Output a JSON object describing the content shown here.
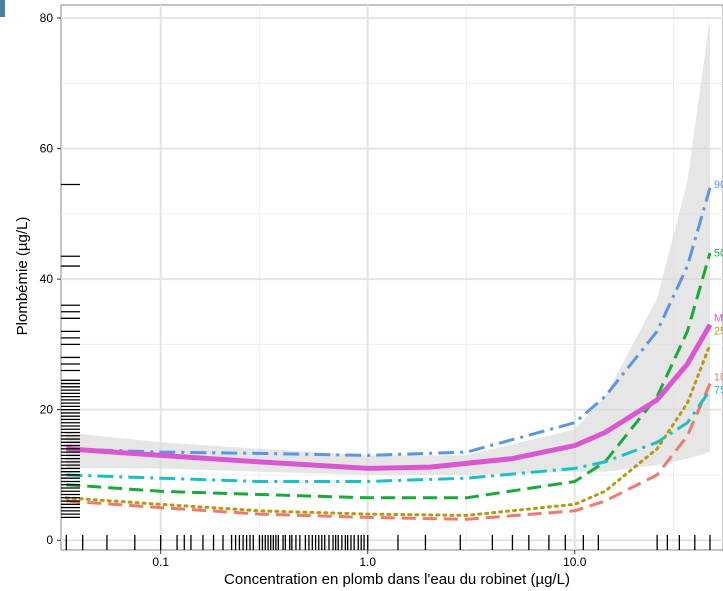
{
  "chart_data": {
    "type": "line",
    "xlabel": "Concentration en plomb dans l'eau du robinet (µg/L)",
    "ylabel": "Plombémie (µg/L)",
    "x_scale": "log10",
    "xlim": [
      0.033,
      52
    ],
    "ylim": [
      -1.5,
      82
    ],
    "x_ticks": [
      0.1,
      1.0,
      10.0
    ],
    "x_tick_labels": [
      "0.1",
      "1.0",
      "10.0"
    ],
    "y_ticks": [
      0,
      20,
      40,
      60,
      80
    ],
    "y_tick_labels": [
      "0",
      "20",
      "40",
      "60",
      "80"
    ],
    "grid": true,
    "confidence_band": {
      "color": "#d9d9d9",
      "x": [
        0.035,
        0.1,
        0.3,
        1.0,
        3.0,
        10.0,
        14.0,
        25.0,
        35.0,
        45.0
      ],
      "lower": [
        11.0,
        11.0,
        10.5,
        10.0,
        10.0,
        10.5,
        10.5,
        11.5,
        12.5,
        13.5
      ],
      "upper": [
        16.5,
        15.0,
        14.0,
        13.0,
        13.0,
        17.0,
        22.0,
        37.0,
        55.0,
        80.0
      ]
    },
    "series": [
      {
        "name": "90",
        "color": "#5b95e5",
        "dash": "dashdot",
        "width": 3,
        "x": [
          0.035,
          0.1,
          0.3,
          1.0,
          3.0,
          10.0,
          14.0,
          25.0,
          35.0,
          45.0
        ],
        "values": [
          14.0,
          13.5,
          13.3,
          13.0,
          13.5,
          18.0,
          22.0,
          32.0,
          42.0,
          54.0
        ]
      },
      {
        "name": "50",
        "color": "#1aaa3a",
        "dash": "dashed",
        "width": 3,
        "x": [
          0.035,
          0.1,
          0.3,
          1.0,
          3.0,
          10.0,
          14.0,
          25.0,
          35.0,
          45.0
        ],
        "values": [
          8.5,
          7.5,
          7.0,
          6.5,
          6.5,
          9.0,
          12.0,
          22.0,
          32.0,
          44.0
        ]
      },
      {
        "name": "Moyenne",
        "color": "#d957d1",
        "dash": "solid",
        "width": 5,
        "x": [
          0.035,
          0.1,
          0.3,
          1.0,
          2.0,
          5.0,
          10.0,
          14.0,
          25.0,
          35.0,
          45.0
        ],
        "values": [
          14.0,
          13.0,
          12.0,
          11.0,
          11.2,
          12.5,
          14.5,
          16.5,
          21.5,
          27.0,
          33.0
        ]
      },
      {
        "name": "25",
        "color": "#b59a12",
        "dash": "dotted",
        "width": 3,
        "x": [
          0.035,
          0.1,
          0.3,
          1.0,
          3.0,
          10.0,
          14.0,
          25.0,
          35.0,
          45.0
        ],
        "values": [
          6.5,
          5.5,
          4.5,
          4.0,
          3.8,
          5.5,
          7.5,
          14.0,
          21.0,
          30.0
        ]
      },
      {
        "name": "10",
        "color": "#ef7a6c",
        "dash": "dashed",
        "width": 3,
        "x": [
          0.035,
          0.1,
          0.3,
          1.0,
          3.0,
          10.0,
          14.0,
          25.0,
          35.0,
          45.0
        ],
        "values": [
          6.0,
          5.0,
          4.0,
          3.5,
          3.2,
          4.5,
          6.0,
          10.0,
          16.0,
          24.0
        ]
      },
      {
        "name": "75",
        "color": "#1dbfc7",
        "dash": "dashdot",
        "width": 3,
        "x": [
          0.035,
          0.1,
          0.3,
          1.0,
          3.0,
          10.0,
          14.0,
          25.0,
          35.0,
          45.0
        ],
        "values": [
          10.0,
          9.5,
          9.0,
          9.0,
          9.5,
          11.0,
          12.0,
          15.0,
          18.0,
          23.0
        ]
      }
    ],
    "series_labels": [
      {
        "text": "90",
        "series": "90",
        "x": 47,
        "y": 54,
        "color": "#5b95e5"
      },
      {
        "text": "50",
        "series": "50",
        "x": 47,
        "y": 43.5,
        "color": "#1aaa3a"
      },
      {
        "text": "Moyenne",
        "series": "Moyenne",
        "x": 47,
        "y": 33.5,
        "color": "#d957d1"
      },
      {
        "text": "25",
        "series": "25",
        "x": 47,
        "y": 31.5,
        "color": "#b59a12"
      },
      {
        "text": "10",
        "series": "10",
        "x": 47,
        "y": 24.5,
        "color": "#ef7a6c"
      },
      {
        "text": "75",
        "series": "75",
        "x": 47,
        "y": 22.5,
        "color": "#1dbfc7"
      }
    ],
    "rug_x": [
      0.035,
      0.042,
      0.055,
      0.075,
      0.1,
      0.12,
      0.13,
      0.14,
      0.16,
      0.18,
      0.2,
      0.22,
      0.23,
      0.24,
      0.25,
      0.26,
      0.27,
      0.28,
      0.3,
      0.31,
      0.32,
      0.33,
      0.34,
      0.35,
      0.36,
      0.37,
      0.39,
      0.4,
      0.42,
      0.43,
      0.45,
      0.47,
      0.5,
      0.52,
      0.54,
      0.56,
      0.58,
      0.6,
      0.62,
      0.65,
      0.68,
      0.7,
      0.72,
      0.75,
      0.78,
      0.8,
      0.83,
      0.86,
      0.9,
      0.93,
      0.96,
      1.0,
      1.4,
      1.9,
      2.8,
      4.0,
      5.0,
      6.0,
      7.5,
      9.0,
      11.0,
      13.0,
      25.0,
      28.0,
      32.0,
      38.0,
      45.0
    ],
    "rug_y": [
      3.5,
      4,
      4.5,
      5,
      5.5,
      6,
      6.5,
      7,
      7.5,
      8,
      8.5,
      9,
      9.5,
      10,
      10.5,
      11,
      11.5,
      12,
      12.5,
      13,
      13.5,
      14,
      14.5,
      15,
      15.5,
      16,
      16.5,
      17,
      17.5,
      18,
      18.5,
      19,
      19.5,
      20,
      20.5,
      21,
      21.5,
      22,
      22.5,
      23,
      23.5,
      24,
      24.5,
      26,
      27,
      28,
      30,
      31,
      32,
      34,
      35,
      36,
      42,
      43.5,
      54.5
    ]
  }
}
